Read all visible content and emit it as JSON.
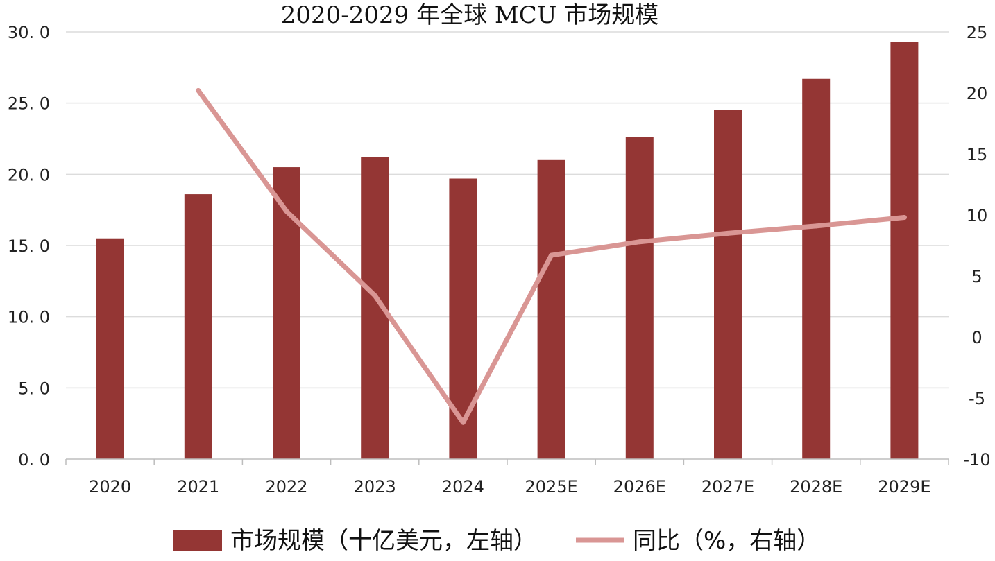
{
  "chart_data": {
    "type": "bar",
    "title": "2020-2029 年全球 MCU 市场规模",
    "categories": [
      "2020",
      "2021",
      "2022",
      "2023",
      "2024",
      "2025E",
      "2026E",
      "2027E",
      "2028E",
      "2029E"
    ],
    "series": [
      {
        "name": "市场规模（十亿美元，左轴）",
        "type": "bar",
        "axis": "left",
        "color": "#943634",
        "values": [
          15.5,
          18.6,
          20.5,
          21.2,
          19.7,
          21.0,
          22.6,
          24.5,
          26.7,
          29.3
        ]
      },
      {
        "name": "同比（%，右轴）",
        "type": "line",
        "axis": "right",
        "color": "#D99694",
        "values": [
          null,
          20.2,
          10.3,
          3.4,
          -7.0,
          6.7,
          7.8,
          8.5,
          9.1,
          9.8
        ]
      }
    ],
    "y_left": {
      "ylim": [
        0,
        30
      ],
      "ticks": [
        "0.0",
        "5.0",
        "10.0",
        "15.0",
        "20.0",
        "25.0",
        "30.0"
      ]
    },
    "y_right": {
      "ylim": [
        -10,
        25
      ],
      "ticks": [
        "-10",
        "-5",
        "0",
        "5",
        "10",
        "15",
        "20",
        "25"
      ]
    },
    "grid": true,
    "legend_position": "bottom"
  }
}
